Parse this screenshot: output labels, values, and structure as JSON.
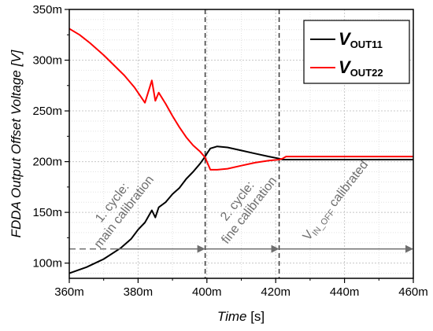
{
  "chart_data": {
    "type": "line",
    "title": "",
    "xlabel": {
      "italic": "Time",
      "unit": " [s]"
    },
    "ylabel": "FDDA Output Offset Voltage [V]",
    "xlim": [
      0.36,
      0.46
    ],
    "ylim": [
      0.085,
      0.35
    ],
    "x_ticks": [
      {
        "v": 0.36,
        "label": "360m"
      },
      {
        "v": 0.38,
        "label": "380m"
      },
      {
        "v": 0.4,
        "label": "400m"
      },
      {
        "v": 0.42,
        "label": "420m"
      },
      {
        "v": 0.44,
        "label": "440m"
      },
      {
        "v": 0.46,
        "label": "460m"
      }
    ],
    "y_ticks": [
      {
        "v": 0.1,
        "label": "100m"
      },
      {
        "v": 0.15,
        "label": "150m"
      },
      {
        "v": 0.2,
        "label": "200m"
      },
      {
        "v": 0.25,
        "label": "250m"
      },
      {
        "v": 0.3,
        "label": "300m"
      },
      {
        "v": 0.35,
        "label": "350m"
      }
    ],
    "grid": true,
    "legend_position": "top-right",
    "series": [
      {
        "name_main": "V",
        "name_sub": "OUT11",
        "color": "#000000",
        "x": [
          0.36,
          0.365,
          0.37,
          0.375,
          0.378,
          0.38,
          0.382,
          0.384,
          0.385,
          0.386,
          0.388,
          0.39,
          0.392,
          0.394,
          0.396,
          0.398,
          0.3995,
          0.4,
          0.401,
          0.403,
          0.406,
          0.41,
          0.414,
          0.418,
          0.421,
          0.422,
          0.43,
          0.44,
          0.45,
          0.46
        ],
        "y": [
          0.09,
          0.096,
          0.104,
          0.115,
          0.124,
          0.133,
          0.14,
          0.152,
          0.145,
          0.155,
          0.16,
          0.168,
          0.174,
          0.183,
          0.19,
          0.198,
          0.205,
          0.208,
          0.213,
          0.215,
          0.214,
          0.211,
          0.208,
          0.205,
          0.203,
          0.202,
          0.202,
          0.202,
          0.202,
          0.202
        ]
      },
      {
        "name_main": "V",
        "name_sub": "OUT22",
        "color": "#ff0000",
        "x": [
          0.36,
          0.363,
          0.366,
          0.37,
          0.373,
          0.376,
          0.379,
          0.382,
          0.384,
          0.385,
          0.386,
          0.388,
          0.39,
          0.392,
          0.394,
          0.396,
          0.398,
          0.3995,
          0.4,
          0.401,
          0.403,
          0.406,
          0.41,
          0.414,
          0.418,
          0.421,
          0.422,
          0.423,
          0.43,
          0.44,
          0.45,
          0.46
        ],
        "y": [
          0.331,
          0.325,
          0.317,
          0.305,
          0.295,
          0.285,
          0.273,
          0.258,
          0.28,
          0.26,
          0.268,
          0.257,
          0.245,
          0.234,
          0.224,
          0.216,
          0.21,
          0.204,
          0.2,
          0.192,
          0.192,
          0.193,
          0.196,
          0.199,
          0.201,
          0.202,
          0.203,
          0.205,
          0.205,
          0.205,
          0.205,
          0.205
        ]
      }
    ],
    "vlines": [
      0.3995,
      0.421
    ],
    "annotations": {
      "cycle1": {
        "line1": "1. cycle:",
        "line2": "main calibration"
      },
      "cycle2": {
        "line1": "2. cycle:",
        "line2": "fine calibration"
      },
      "cycle3": {
        "main": "V",
        "sub": "IN_OFF",
        "rest": " calibrated"
      }
    },
    "dashed_level": 0.114
  }
}
